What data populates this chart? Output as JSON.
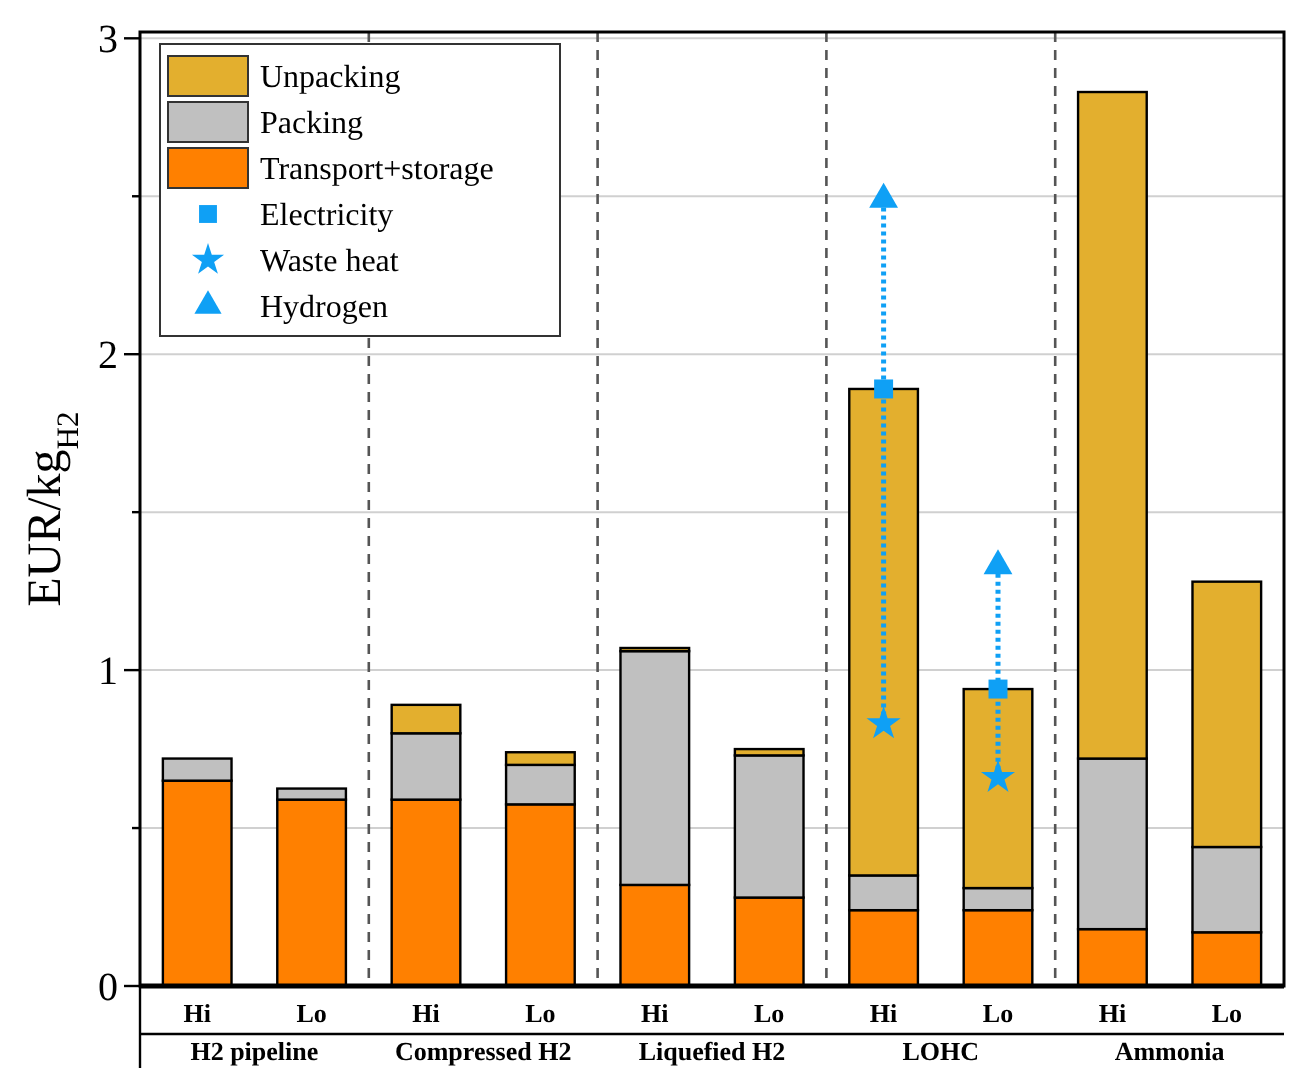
{
  "chart_data": {
    "type": "bar",
    "stacked": true,
    "ylabel": "EUR/kg$_{H2}$",
    "categories": [
      "Hi",
      "Lo",
      "Hi",
      "Lo",
      "Hi",
      "Lo",
      "Hi",
      "Lo",
      "Hi",
      "Lo"
    ],
    "annotations": [
      "H2 pipeline",
      "Compressed H2",
      "Liquefied H2",
      "LOHC",
      "Ammonia"
    ],
    "series": [
      {
        "name": "Transport+storage",
        "color": "#ff8000",
        "values": [
          0.65,
          0.59,
          0.59,
          0.575,
          0.32,
          0.28,
          0.24,
          0.24,
          0.18,
          0.17
        ]
      },
      {
        "name": "Packing",
        "color": "#c0c0c0",
        "values": [
          0.07,
          0.035,
          0.21,
          0.125,
          0.74,
          0.45,
          0.11,
          0.07,
          0.54,
          0.27
        ]
      },
      {
        "name": "Unpacking",
        "color": "#e3af2e",
        "values": [
          0,
          0,
          0.09,
          0.04,
          0.01,
          0.02,
          1.54,
          0.63,
          2.11,
          0.84
        ]
      },
      {
        "name": "Electricity",
        "type": "scatter",
        "marker": "square",
        "color": "#0fa0f5",
        "values": [
          null,
          null,
          null,
          null,
          null,
          null,
          1.89,
          0.94,
          null,
          null
        ]
      },
      {
        "name": "Waste heat",
        "type": "scatter",
        "marker": "star",
        "color": "#0fa0f5",
        "values": [
          null,
          null,
          null,
          null,
          null,
          null,
          0.83,
          0.66,
          null,
          null
        ]
      },
      {
        "name": "Hydrogen",
        "type": "scatter",
        "marker": "triangle",
        "color": "#0fa0f5",
        "values": [
          null,
          null,
          null,
          null,
          null,
          null,
          2.49,
          1.33,
          null,
          null
        ]
      }
    ],
    "ylim": [
      0,
      3.02
    ],
    "yticks": [
      0,
      {
        "value": 0.5,
        "label": null
      },
      1,
      {
        "value": 1.5,
        "label": null
      },
      2,
      {
        "value": 2.5,
        "label": null
      },
      3
    ],
    "grid": "y",
    "legend": "top left"
  }
}
